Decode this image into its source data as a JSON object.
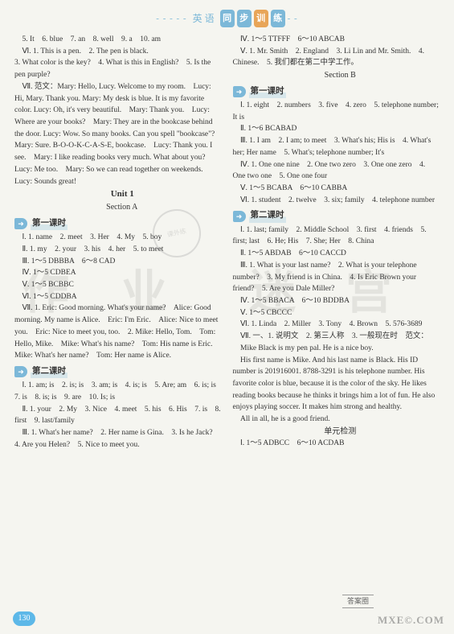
{
  "header": {
    "left_text": "英 语",
    "b1": "同",
    "b2": "步",
    "b3": "训",
    "b4": "练"
  },
  "left": {
    "p1": "5. It　6. blue　7. an　8. well　9. a　10. am",
    "p2": "Ⅵ. 1. This is a pen.　2. The pen is black.",
    "p3": "3. What color is the key?　4. What is this in English?　5. Is the pen purple?",
    "p4": "Ⅶ. 范文：Mary: Hello, Lucy. Welcome to my room.　Lucy: Hi, Mary. Thank you. Mary: My desk is blue. It is my favorite color. Lucy: Oh, it's very beautiful.　Mary: Thank you.　Lucy: Where are your books?　Mary: They are in the bookcase behind the door. Lucy: Wow. So many books. Can you spell \"bookcase\"?　Mary: Sure. B-O-O-K-C-A-S-E, bookcase.　Lucy: Thank you. I see.　Mary: I like reading books very much. What about you? Lucy: Me too.　Mary: So we can read together on weekends.　Lucy: Sounds great!",
    "unit1": "Unit 1",
    "sectionA": "Section A",
    "lesson1": "第一课时",
    "a1": "Ⅰ. 1. name　2. meet　3. Her　4. My　5. boy",
    "a2": "Ⅱ. 1. my　2. your　3. his　4. her　5. to meet",
    "a3": "Ⅲ. 1～5 DBBBA　6～8 CAD",
    "a4": "Ⅳ. 1～5 CDBEA",
    "a5": "Ⅴ. 1～5 BCBBC",
    "a6": "Ⅵ. 1～5 CDDBA",
    "a7": "Ⅶ. 1. Eric: Good morning. What's your name?　Alice: Good morning. My name is Alice.　Eric: I'm Eric.　Alice: Nice to meet you.　Eric: Nice to meet you, too.　2. Mike: Hello, Tom.　Tom: Hello, Mike.　Mike: What's his name?　Tom: His name is Eric. Mike: What's her name?　Tom: Her name is Alice.",
    "lesson2": "第二课时",
    "b1": "Ⅰ. 1. am; is　2. is; is　3. am; is　4. is; is　5. Are; am　6. is; is　7. is　8. is; is　9. are　10. Is; is",
    "b2": "Ⅱ. 1. your　2. My　3. Nice　4. meet　5. his　6. His　7. is　8. first　9. last/family",
    "b3": "Ⅲ. 1. What's her name?　2. Her name is Gina.　3. Is he Jack?　4. Are you Helen?　5. Nice to meet you."
  },
  "right": {
    "r1": "Ⅳ. 1～5 TTFFF　6～10 ABCAB",
    "r2": "Ⅴ. 1. Mr. Smith　2. England　3. Li Lin and Mr. Smith.　4. Chinese.　5. 我们都在第二中学工作。",
    "sectionB": "Section B",
    "lesson1": "第一课时",
    "c1": "Ⅰ. 1. eight　2. numbers　3. five　4. zero　5. telephone number; It is",
    "c2": "Ⅱ. 1～6 BCABAD",
    "c3": "Ⅲ. 1. I am　2. I am; to meet　3. What's his; His is　4. What's her; Her name　5. What's; telephone number; It's",
    "c4": "Ⅳ. 1. One one nine　2. One two zero　3. One one zero　4. One two one　5. One one four",
    "c5": "Ⅴ. 1～5 BCABA　6～10 CABBA",
    "c6": "Ⅵ. 1. student　2. twelve　3. six; family　4. telephone number",
    "lesson2": "第二课时",
    "d1": "Ⅰ. 1. last; family　2. Middle School　3. first　4. friends　5. first; last　6. He; His　7. She; Her　8. China",
    "d2": "Ⅱ. 1～5 ABDAB　6～10 CACCD",
    "d3": "Ⅲ. 1. What is your last name?　2. What is your telephone number?　3. My friend is in China.　4. Is Eric Brown your friend?　5. Are you Dale Miller?",
    "d4": "Ⅳ. 1～5 BBACA　6～10 BDDBA",
    "d5": "Ⅴ. 1～5 CBCCC",
    "d6": "Ⅵ. 1. Linda　2. Miller　3. Tony　4. Brown　5. 576-3689",
    "d7": "Ⅶ. 一、1. 说明文　2. 第三人称　3. 一般现在时　范文：",
    "d8": "Mike Black is my pen pal. He is a nice boy.",
    "d9": "His first name is Mike. And his last name is Black. His ID number is 201916001. 8788-3291 is his telephone number. His favorite color is blue, because it is the color of the sky. He likes reading books because he thinks it brings him a lot of fun. He also enjoys playing soccer. It makes him strong and healthy.",
    "d10": "All in all, he is a good friend.",
    "unit2": "单元检测",
    "e1": "Ⅰ. 1～5 ADBCC　6～10 ACDAB"
  },
  "page": "130",
  "corner_box": "答案圈",
  "corner_wm": "MXE©.COM",
  "wm": {
    "a": "作",
    "b": "业",
    "c": "迷",
    "d": "宫"
  }
}
